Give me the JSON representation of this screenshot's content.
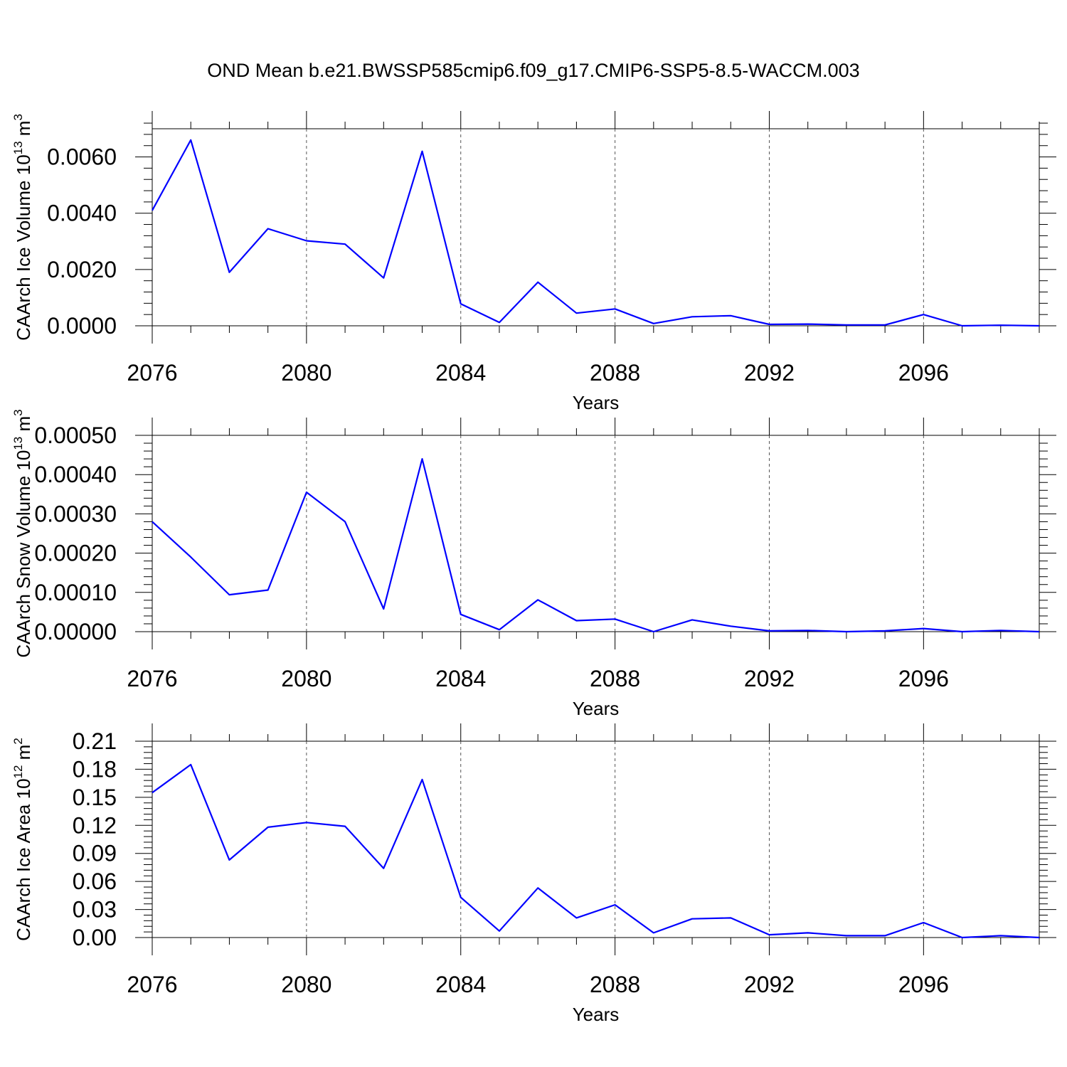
{
  "title": "OND Mean b.e21.BWSSP585cmip6.f09_g17.CMIP6-SSP5-8.5-WACCM.003",
  "colors": {
    "line": "#0000ff",
    "axis": "#000000",
    "grid": "#555555"
  },
  "chart_data": [
    {
      "type": "line",
      "xlabel": "Years",
      "ylabel": "CAArch Ice Volume 10",
      "ylabel_exp": "13",
      "ylabel_unit": " m",
      "ylabel_unit_exp": "3",
      "xlim": [
        2076,
        2099
      ],
      "ylim": [
        0,
        0.007
      ],
      "yticks": [
        0,
        0.002,
        0.004,
        0.006
      ],
      "ytick_labels": [
        "0.0000",
        "0.0020",
        "0.0040",
        "0.0060"
      ],
      "xticks": [
        2076,
        2080,
        2084,
        2088,
        2092,
        2096
      ],
      "xtick_labels": [
        "2076",
        "2080",
        "2084",
        "2088",
        "2092",
        "2096"
      ],
      "x": [
        2076,
        2077,
        2078,
        2079,
        2080,
        2081,
        2082,
        2083,
        2084,
        2085,
        2086,
        2087,
        2088,
        2089,
        2090,
        2091,
        2092,
        2093,
        2094,
        2095,
        2096,
        2097,
        2098,
        2099
      ],
      "series": [
        {
          "name": "CAArch Ice Volume",
          "values": [
            0.0041,
            0.0066,
            0.0019,
            0.00345,
            0.00302,
            0.0029,
            0.0017,
            0.0062,
            0.00078,
            0.00012,
            0.00155,
            0.00045,
            0.0006,
            8e-05,
            0.00032,
            0.00036,
            5e-05,
            6e-05,
            3e-05,
            3e-05,
            0.0004,
            0.0,
            2e-05,
            0.0
          ]
        }
      ]
    },
    {
      "type": "line",
      "xlabel": "Years",
      "ylabel": "CAArch Snow Volume 10",
      "ylabel_exp": "13",
      "ylabel_unit": " m",
      "ylabel_unit_exp": "3",
      "xlim": [
        2076,
        2099
      ],
      "ylim": [
        0,
        0.0005
      ],
      "yticks": [
        0,
        0.0001,
        0.0002,
        0.0003,
        0.0004,
        0.0005
      ],
      "ytick_labels": [
        "0.00000",
        "0.00010",
        "0.00020",
        "0.00030",
        "0.00040",
        "0.00050"
      ],
      "xticks": [
        2076,
        2080,
        2084,
        2088,
        2092,
        2096
      ],
      "xtick_labels": [
        "2076",
        "2080",
        "2084",
        "2088",
        "2092",
        "2096"
      ],
      "x": [
        2076,
        2077,
        2078,
        2079,
        2080,
        2081,
        2082,
        2083,
        2084,
        2085,
        2086,
        2087,
        2088,
        2089,
        2090,
        2091,
        2092,
        2093,
        2094,
        2095,
        2096,
        2097,
        2098,
        2099
      ],
      "series": [
        {
          "name": "CAArch Snow Volume",
          "values": [
            0.00028,
            0.00019,
            9.4e-05,
            0.000106,
            0.000355,
            0.00028,
            5.8e-05,
            0.00044,
            4.4e-05,
            5e-06,
            8.1e-05,
            2.8e-05,
            3.2e-05,
            0.0,
            3e-05,
            1.4e-05,
            2e-06,
            3e-06,
            0.0,
            2e-06,
            8e-06,
            0.0,
            3e-06,
            0.0
          ]
        }
      ]
    },
    {
      "type": "line",
      "xlabel": "Years",
      "ylabel": "CAArch Ice Area 10",
      "ylabel_exp": "12",
      "ylabel_unit": " m",
      "ylabel_unit_exp": "2",
      "xlim": [
        2076,
        2099
      ],
      "ylim": [
        0,
        0.21
      ],
      "yticks": [
        0,
        0.03,
        0.06,
        0.09,
        0.12,
        0.15,
        0.18,
        0.21
      ],
      "ytick_labels": [
        "0.00",
        "0.03",
        "0.06",
        "0.09",
        "0.12",
        "0.15",
        "0.18",
        "0.21"
      ],
      "xticks": [
        2076,
        2080,
        2084,
        2088,
        2092,
        2096
      ],
      "xtick_labels": [
        "2076",
        "2080",
        "2084",
        "2088",
        "2092",
        "2096"
      ],
      "x": [
        2076,
        2077,
        2078,
        2079,
        2080,
        2081,
        2082,
        2083,
        2084,
        2085,
        2086,
        2087,
        2088,
        2089,
        2090,
        2091,
        2092,
        2093,
        2094,
        2095,
        2096,
        2097,
        2098,
        2099
      ],
      "series": [
        {
          "name": "CAArch Ice Area",
          "values": [
            0.155,
            0.185,
            0.083,
            0.118,
            0.123,
            0.119,
            0.074,
            0.169,
            0.043,
            0.007,
            0.053,
            0.021,
            0.035,
            0.005,
            0.02,
            0.021,
            0.003,
            0.005,
            0.002,
            0.002,
            0.016,
            0.0,
            0.002,
            0.0
          ]
        }
      ]
    }
  ]
}
